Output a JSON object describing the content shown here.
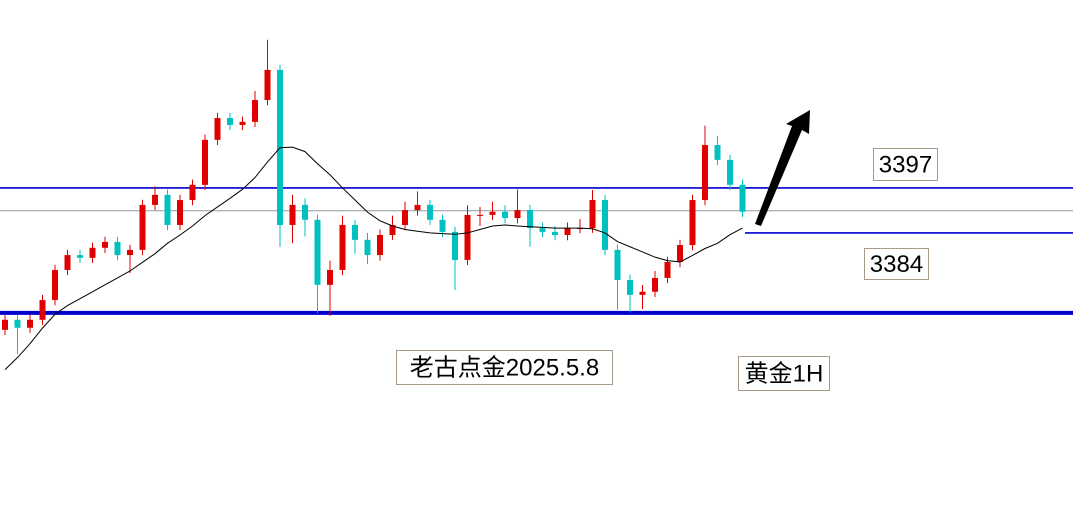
{
  "chart_data": {
    "type": "candlestick",
    "ylim": [
      3305.1,
      3451.3
    ],
    "up_color": "#e00000",
    "down_color": "#00c0c0",
    "open": [
      3356,
      3358.9,
      3356.6,
      3358.9,
      3364.6,
      3373.3,
      3377.6,
      3376.8,
      3379.7,
      3381.4,
      3377.6,
      3379.1,
      3392.1,
      3395,
      3386.3,
      3393.5,
      3397.9,
      3410.9,
      3417.2,
      3415.2,
      3416.1,
      3422.4,
      3431.1,
      3386.3,
      3392.1,
      3387.8,
      3369,
      3373.3,
      3386.3,
      3382,
      3377.6,
      3383.4,
      3386.3,
      3390.6,
      3392.1,
      3387.8,
      3384.3,
      3376.2,
      3389.2,
      3389.2,
      3390.1,
      3388.3,
      3390.6,
      3385.4,
      3384.3,
      3383.4,
      3385.4,
      3385.4,
      3393.5,
      3379.1,
      3370.4,
      3366.1,
      3367,
      3371,
      3375.6,
      3380.5,
      3393.5,
      3409.4,
      3405.1,
      3397.9
    ],
    "high": [
      3360.4,
      3360.4,
      3360.4,
      3366.1,
      3374.8,
      3379.1,
      3379.1,
      3381.2,
      3382.9,
      3382.9,
      3380.6,
      3393.6,
      3397.5,
      3396.5,
      3395,
      3399.4,
      3412.4,
      3418.7,
      3418.7,
      3417.6,
      3425,
      3439.8,
      3432.6,
      3395,
      3394,
      3389.3,
      3376,
      3389,
      3387.8,
      3384,
      3385,
      3389,
      3393,
      3396,
      3393.6,
      3389.3,
      3385.8,
      3392,
      3391.5,
      3393,
      3392,
      3396.5,
      3392.1,
      3387,
      3386,
      3387,
      3388,
      3396.4,
      3395,
      3380.6,
      3372,
      3369,
      3373,
      3377.1,
      3382,
      3395,
      3415,
      3412,
      3406.6,
      3399.4
    ],
    "low": [
      3354.5,
      3349,
      3355.1,
      3357.4,
      3363.1,
      3371.8,
      3375.3,
      3375.3,
      3378.2,
      3376.1,
      3372.4,
      3377.6,
      3390.6,
      3384.8,
      3384.8,
      3392,
      3396.4,
      3409.4,
      3413.7,
      3413.7,
      3414.6,
      3420.9,
      3380,
      3381,
      3383,
      3360.9,
      3360,
      3371.8,
      3378,
      3375,
      3376,
      3382,
      3384.8,
      3389,
      3386.3,
      3382.8,
      3367.5,
      3374.7,
      3386,
      3387.7,
      3386.8,
      3386.8,
      3380,
      3382.8,
      3381.9,
      3381.9,
      3383.9,
      3384,
      3377.6,
      3361.8,
      3361,
      3362,
      3365.5,
      3369.5,
      3374.1,
      3379,
      3392,
      3403.6,
      3396.4,
      3388.6
    ],
    "close": [
      3358.9,
      3356.6,
      3358.9,
      3364.6,
      3373.3,
      3377.6,
      3376.8,
      3379.7,
      3381.4,
      3377.6,
      3379.1,
      3392.1,
      3395,
      3386.3,
      3393.5,
      3397.9,
      3410.9,
      3417.2,
      3415.2,
      3416.1,
      3422.4,
      3431.1,
      3386.3,
      3392.1,
      3387.8,
      3369,
      3373.3,
      3386.3,
      3382,
      3377.6,
      3383.4,
      3386.3,
      3390.6,
      3392.1,
      3387.8,
      3384.3,
      3376.2,
      3389.2,
      3389.2,
      3390.1,
      3388.3,
      3390.6,
      3385.4,
      3384.3,
      3383.4,
      3385.4,
      3385.4,
      3393.5,
      3379.1,
      3370.4,
      3366.1,
      3367,
      3371,
      3375.6,
      3380.5,
      3393.5,
      3409.4,
      3405.1,
      3397.9,
      3390.1
    ],
    "ma": {
      "color": "#000000",
      "values": [
        3344.5,
        3348,
        3352,
        3356.5,
        3360.5,
        3363,
        3365,
        3367,
        3369,
        3371,
        3373,
        3375.5,
        3378,
        3381,
        3383.4,
        3386,
        3389,
        3391.5,
        3394,
        3396.6,
        3400,
        3404.5,
        3408.6,
        3408.8,
        3407.5,
        3404,
        3400.8,
        3397,
        3393.5,
        3390,
        3387.5,
        3386,
        3385,
        3384.5,
        3384,
        3383.8,
        3383.6,
        3384,
        3385,
        3386,
        3386.3,
        3386,
        3385.8,
        3385.6,
        3385.4,
        3385.4,
        3385.4,
        3385.2,
        3384,
        3381.5,
        3380,
        3378.5,
        3377,
        3376,
        3375.6,
        3377.5,
        3379.5,
        3381,
        3383.5,
        3385.4
      ]
    },
    "levels": [
      {
        "value": 3397,
        "color": "#0000cc"
      },
      {
        "value": 3390.4,
        "color": "#8c9aa5"
      },
      {
        "value": 3384,
        "color": "#0000cc"
      },
      {
        "value": 3360.9,
        "color": "#0000cc"
      }
    ],
    "annotations": [
      "老古点金2025.5.8",
      "黄金1H"
    ]
  }
}
